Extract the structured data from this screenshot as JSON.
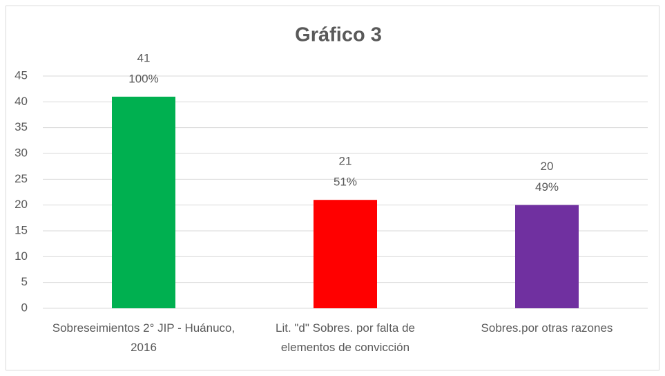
{
  "chart_data": {
    "type": "bar",
    "title": "Gráfico 3",
    "categories": [
      "Sobreseimientos 2° JIP - Huánuco, 2016",
      "Lit. \"d\" Sobres. por falta de elementos de convicción",
      "Sobres.por otras razones"
    ],
    "values": [
      41,
      21,
      20
    ],
    "percentages": [
      100,
      51,
      49
    ],
    "percentage_labels": [
      "100%",
      "51%",
      "49%"
    ],
    "colors": [
      "#00b050",
      "#ff0000",
      "#7030a0"
    ],
    "ylim": [
      0,
      45
    ],
    "yticks": [
      0,
      5,
      10,
      15,
      20,
      25,
      30,
      35,
      40,
      45
    ],
    "grid": true
  }
}
